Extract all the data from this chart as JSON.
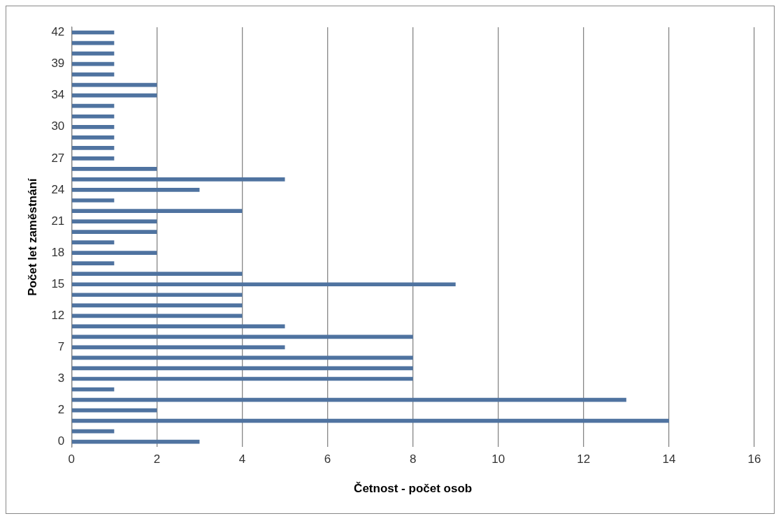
{
  "chart_data": {
    "type": "bar",
    "orientation": "horizontal",
    "xlabel": "Četnost - počet osob",
    "ylabel": "Počet let zaměstnání",
    "categories": [
      "42",
      null,
      null,
      "39",
      null,
      null,
      "34",
      null,
      null,
      "30",
      null,
      null,
      "27",
      null,
      null,
      "24",
      null,
      null,
      "21",
      null,
      null,
      "18",
      null,
      null,
      "15",
      null,
      null,
      "12",
      null,
      null,
      "7",
      null,
      null,
      "3",
      null,
      null,
      "2",
      null,
      null,
      "0"
    ],
    "values": [
      1,
      1,
      1,
      1,
      1,
      2,
      2,
      1,
      1,
      1,
      1,
      1,
      1,
      2,
      5,
      3,
      1,
      4,
      2,
      2,
      1,
      2,
      1,
      4,
      9,
      4,
      4,
      4,
      5,
      8,
      5,
      8,
      8,
      8,
      1,
      13,
      2,
      14,
      1,
      3
    ],
    "color": "#4f73a0",
    "xlim": [
      0,
      16
    ],
    "xticks": [
      0,
      2,
      4,
      6,
      8,
      10,
      12,
      14,
      16
    ],
    "grid": "x",
    "legend": false
  }
}
